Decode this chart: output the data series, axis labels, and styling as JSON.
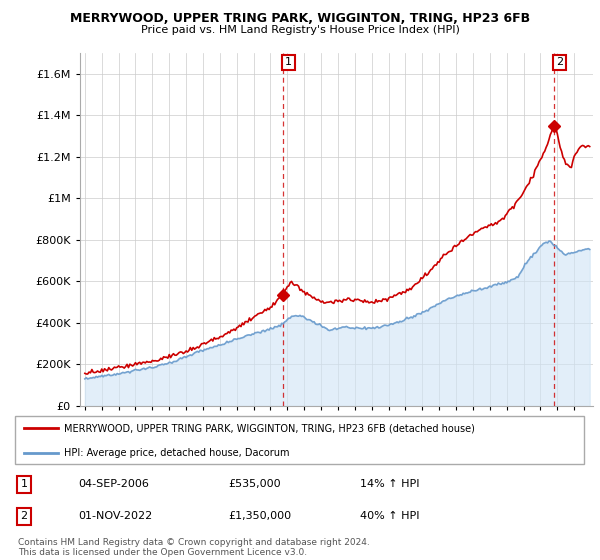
{
  "title": "MERRYWOOD, UPPER TRING PARK, WIGGINTON, TRING, HP23 6FB",
  "subtitle": "Price paid vs. HM Land Registry's House Price Index (HPI)",
  "legend_line1": "MERRYWOOD, UPPER TRING PARK, WIGGINTON, TRING, HP23 6FB (detached house)",
  "legend_line2": "HPI: Average price, detached house, Dacorum",
  "sale1_date": "04-SEP-2006",
  "sale1_price": "£535,000",
  "sale1_hpi": "14% ↑ HPI",
  "sale1_year": 2006.75,
  "sale1_value": 535000,
  "sale2_date": "01-NOV-2022",
  "sale2_price": "£1,350,000",
  "sale2_hpi": "40% ↑ HPI",
  "sale2_year": 2022.83,
  "sale2_value": 1350000,
  "red_color": "#cc0000",
  "blue_color": "#6699cc",
  "blue_fill": "#d0e4f5",
  "footnote": "Contains HM Land Registry data © Crown copyright and database right 2024.\nThis data is licensed under the Open Government Licence v3.0.",
  "ylim": [
    0,
    1700000
  ],
  "yticks": [
    0,
    200000,
    400000,
    600000,
    800000,
    1000000,
    1200000,
    1400000,
    1600000
  ],
  "ytick_labels": [
    "£0",
    "£200K",
    "£400K",
    "£600K",
    "£800K",
    "£1M",
    "£1.2M",
    "£1.4M",
    "£1.6M"
  ]
}
